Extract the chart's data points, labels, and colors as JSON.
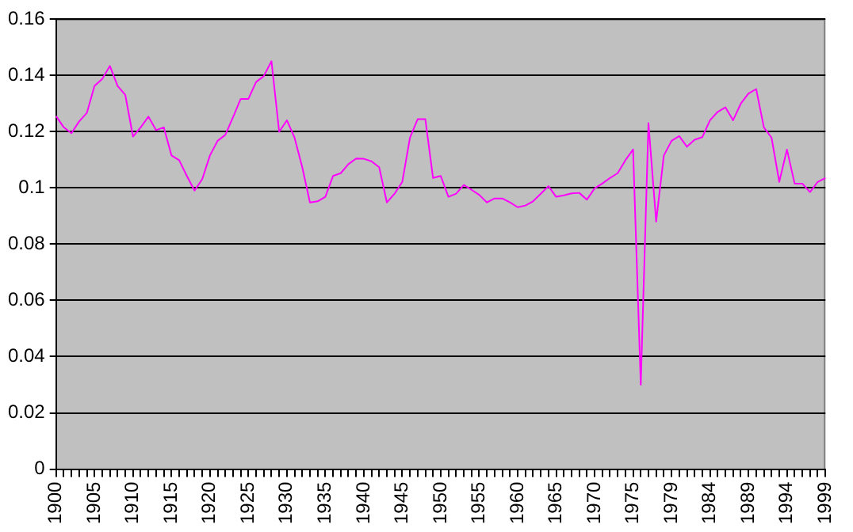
{
  "chart_data": {
    "type": "line",
    "categories": [
      "1900",
      null,
      null,
      null,
      null,
      "1905",
      null,
      null,
      null,
      null,
      "1910",
      null,
      null,
      null,
      null,
      "1915",
      null,
      null,
      null,
      null,
      "1920",
      null,
      null,
      null,
      null,
      "1925",
      null,
      null,
      null,
      null,
      "1930",
      null,
      null,
      null,
      null,
      "1935",
      null,
      null,
      null,
      null,
      "1940",
      null,
      null,
      null,
      null,
      "1945",
      null,
      null,
      null,
      null,
      "1950",
      null,
      null,
      null,
      null,
      "1955",
      null,
      null,
      null,
      null,
      "1960",
      null,
      null,
      null,
      null,
      "1965",
      null,
      null,
      null,
      null,
      "1970",
      null,
      null,
      null,
      null,
      "1975",
      null,
      null,
      null,
      null,
      "1979",
      null,
      null,
      null,
      null,
      "1984",
      null,
      null,
      null,
      null,
      "1989",
      null,
      null,
      null,
      null,
      "1994",
      null,
      null,
      null,
      null,
      "1999"
    ],
    "series": [
      {
        "color": "#ff00ff",
        "values": [
          0.1255,
          0.1215,
          0.1194,
          0.1236,
          0.1266,
          0.1362,
          0.1387,
          0.1433,
          0.1362,
          0.133,
          0.1182,
          0.1215,
          0.1253,
          0.1205,
          0.1215,
          0.1115,
          0.1098,
          0.1042,
          0.099,
          0.1031,
          0.1115,
          0.1167,
          0.1188,
          0.1251,
          0.1316,
          0.1316,
          0.1376,
          0.1397,
          0.145,
          0.1199,
          0.124,
          0.1178,
          0.1073,
          0.0948,
          0.0952,
          0.0968,
          0.1042,
          0.1052,
          0.1084,
          0.1104,
          0.1103,
          0.1094,
          0.1073,
          0.0948,
          0.0979,
          0.1021,
          0.1178,
          0.1244,
          0.1244,
          0.1035,
          0.1042,
          0.0968,
          0.0979,
          0.101,
          0.0993,
          0.0975,
          0.0948,
          0.0962,
          0.0962,
          0.0948,
          0.0931,
          0.0937,
          0.0952,
          0.0979,
          0.1006,
          0.0968,
          0.0973,
          0.098,
          0.0982,
          0.0958,
          0.0998,
          0.1015,
          0.1035,
          0.1052,
          0.1098,
          0.1136,
          0.03,
          0.123,
          0.088,
          0.1115,
          0.1167,
          0.1184,
          0.1146,
          0.1171,
          0.118,
          0.124,
          0.127,
          0.1286,
          0.124,
          0.1299,
          0.1335,
          0.1351,
          0.1215,
          0.1178,
          0.1021,
          0.1136,
          0.1015,
          0.1015,
          0.0985,
          0.1021,
          0.1035
        ]
      }
    ],
    "ylim": [
      0,
      0.16
    ],
    "yticks": [
      0,
      0.02,
      0.04,
      0.06,
      0.08,
      0.1,
      0.12,
      0.14,
      0.16
    ],
    "grid": "y",
    "legend": false,
    "marker": "none",
    "line_style": "solid"
  }
}
